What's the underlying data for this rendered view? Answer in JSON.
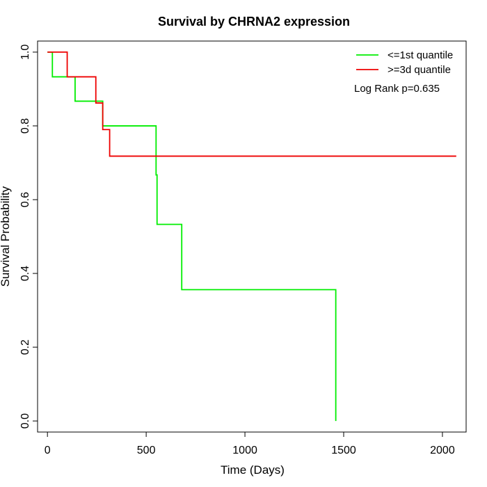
{
  "chart_data": {
    "type": "line",
    "title": "Survival by CHRNA2 expression",
    "xlabel": "Time (Days)",
    "ylabel": "Survival Probability",
    "xlim": [
      -50,
      2120
    ],
    "ylim": [
      -0.03,
      1.03
    ],
    "xticks": [
      0,
      500,
      1000,
      1500,
      2000
    ],
    "yticks": [
      0.0,
      0.2,
      0.4,
      0.6,
      0.8,
      1.0
    ],
    "xtick_labels": [
      "0",
      "500",
      "1000",
      "1500",
      "2000"
    ],
    "ytick_labels": [
      "0.0",
      "0.2",
      "0.4",
      "0.6",
      "0.8",
      "1.0"
    ],
    "grid": false,
    "legend_position": "top-right",
    "annotation": "Log Rank p=0.635",
    "series": [
      {
        "name": "<=1st quantile",
        "color": "#00ee00",
        "step": true,
        "x": [
          0,
          25,
          140,
          280,
          550,
          555,
          680,
          1460,
          1460
        ],
        "y": [
          1.0,
          0.933,
          0.867,
          0.8,
          0.667,
          0.533,
          0.356,
          0.356,
          0.0
        ]
      },
      {
        "name": ">=3d quantile",
        "color": "#ee0000",
        "step": true,
        "x": [
          0,
          100,
          245,
          280,
          315,
          2070
        ],
        "y": [
          1.0,
          0.933,
          0.862,
          0.79,
          0.718,
          0.718
        ]
      }
    ]
  }
}
